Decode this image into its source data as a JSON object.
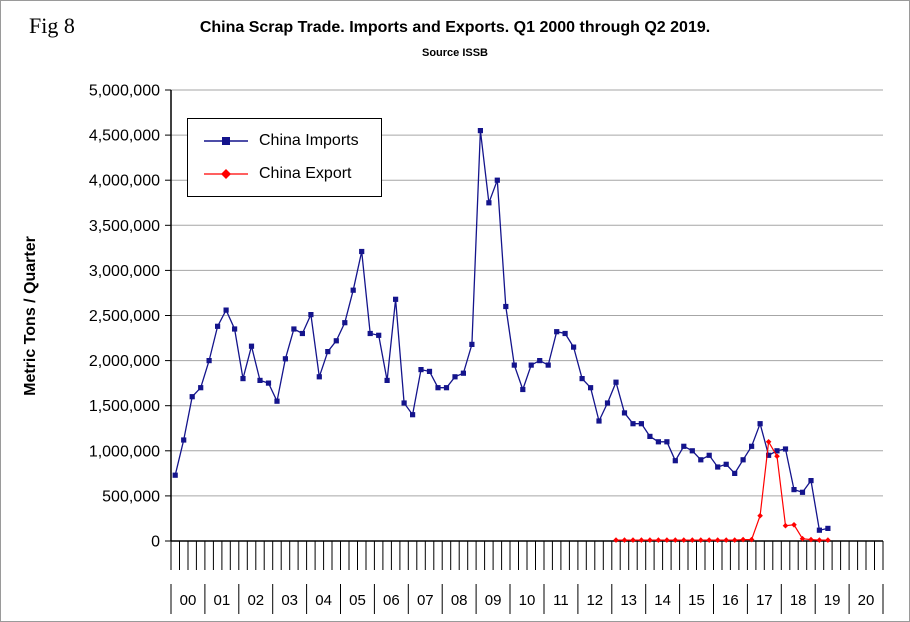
{
  "figure": {
    "fig_label": "Fig 8",
    "title": "China Scrap Trade. Imports and Exports. Q1 2000 through Q2 2019.",
    "subtitle": "Source ISSB",
    "y_axis_title": "Metric Tons / Quarter"
  },
  "chart_data": {
    "type": "line",
    "title": "China Scrap Trade. Imports and Exports. Q1 2000 through Q2 2019.",
    "subtitle": "Source ISSB",
    "ylabel": "Metric Tons / Quarter",
    "xlabel": "",
    "grid": "horizontal",
    "legend_position": "upper-left-inside",
    "ylim": [
      0,
      5000000
    ],
    "y_axis": {
      "min": 0,
      "max": 5000000,
      "step": 500000,
      "tick_labels": [
        "0",
        "500,000",
        "1,000,000",
        "1,500,000",
        "2,000,000",
        "2,500,000",
        "3,000,000",
        "3,500,000",
        "4,000,000",
        "4,500,000",
        "5,000,000"
      ]
    },
    "x_axis": {
      "unit": "quarter",
      "quarters_per_year": 4,
      "year_labels": [
        "00",
        "01",
        "02",
        "03",
        "04",
        "05",
        "06",
        "07",
        "08",
        "09",
        "10",
        "11",
        "12",
        "13",
        "14",
        "15",
        "16",
        "17",
        "18",
        "19",
        "20"
      ]
    },
    "colors": {
      "imports": "#14148c",
      "export": "#ff0000",
      "gridline": "#a6a6a6",
      "axis": "#000000"
    },
    "series": [
      {
        "name": "China Imports",
        "color": "#14148c",
        "marker": "square",
        "line_width": 1.3,
        "start_quarter": 0,
        "start_label": "2000 Q1",
        "values": [
          730000,
          1120000,
          1600000,
          1700000,
          2000000,
          2380000,
          2560000,
          2350000,
          1800000,
          2160000,
          1780000,
          1750000,
          1550000,
          2020000,
          2350000,
          2300000,
          2510000,
          1820000,
          2100000,
          2220000,
          2420000,
          2780000,
          3210000,
          2300000,
          2280000,
          1780000,
          2680000,
          1530000,
          1400000,
          1900000,
          1880000,
          1700000,
          1700000,
          1820000,
          1860000,
          2180000,
          4550000,
          3750000,
          4000000,
          2600000,
          1950000,
          1680000,
          1950000,
          2000000,
          1950000,
          2320000,
          2300000,
          2150000,
          1800000,
          1700000,
          1330000,
          1530000,
          1760000,
          1420000,
          1300000,
          1300000,
          1160000,
          1100000,
          1100000,
          890000,
          1050000,
          1000000,
          900000,
          950000,
          820000,
          850000,
          750000,
          900000,
          1050000,
          1300000,
          950000,
          1000000,
          1020000,
          570000,
          540000,
          670000,
          120000,
          140000
        ]
      },
      {
        "name": "China Export",
        "color": "#ff0000",
        "marker": "diamond",
        "line_width": 1.2,
        "start_quarter": 52,
        "start_label": "2013 Q1",
        "values": [
          10000,
          10000,
          10000,
          10000,
          10000,
          10000,
          10000,
          10000,
          10000,
          10000,
          10000,
          10000,
          10000,
          10000,
          10000,
          15000,
          15000,
          280000,
          1100000,
          940000,
          170000,
          180000,
          25000,
          15000,
          10000,
          10000
        ]
      }
    ]
  }
}
